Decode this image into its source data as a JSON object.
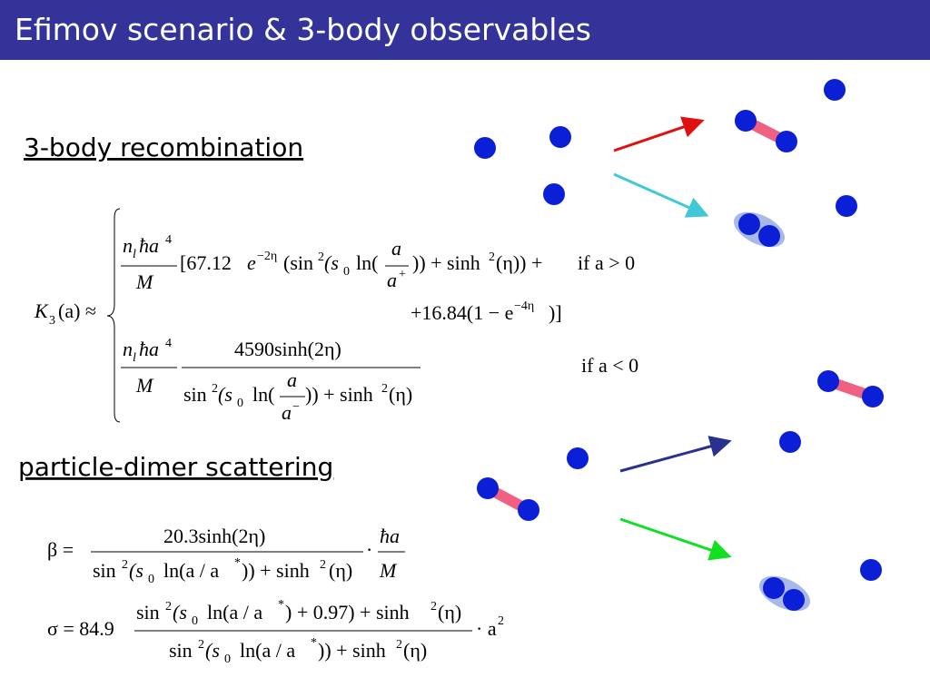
{
  "header": {
    "title": "Efimov scenario & 3-body observables"
  },
  "sections": [
    {
      "heading": "3-body recombination"
    },
    {
      "heading": "particle-dimer scattering"
    }
  ],
  "formulas": {
    "k3": [
      "K",
      "3",
      "(a) ≈",
      "n",
      "l",
      "ħa",
      "4",
      "M",
      "[67.12",
      "e",
      "−2η",
      "(sin",
      "2",
      "(s",
      "0",
      "ln(",
      "a",
      "a",
      "+",
      ")) + sinh",
      "2",
      "(η)) +",
      "if a > 0",
      "+16.84(1 − e",
      "−4η",
      ")]",
      "n",
      "l",
      "ħa",
      "4",
      "M",
      "4590sinh(2η)",
      "sin",
      "2",
      "(s",
      "0",
      "ln(",
      "a",
      "a",
      "−",
      ")) + sinh",
      "2",
      "(η)",
      "if a < 0"
    ],
    "beta": [
      "β =",
      "20.3sinh(2η)",
      "sin",
      "2",
      "(s",
      "0",
      "ln(a / a",
      "*",
      ")) + sinh",
      "2",
      "(η)",
      "·",
      "ħa",
      "M"
    ],
    "sigma": [
      "σ = 84.9",
      "sin",
      "2",
      "(s",
      "0",
      "ln(a / a",
      "*",
      ") + 0.97) + sinh",
      "2",
      "(η)",
      "sin",
      "2",
      "(s",
      "0",
      "ln(a / a",
      "*",
      ")) + sinh",
      "2",
      "(η)",
      "· a",
      "2"
    ]
  }
}
